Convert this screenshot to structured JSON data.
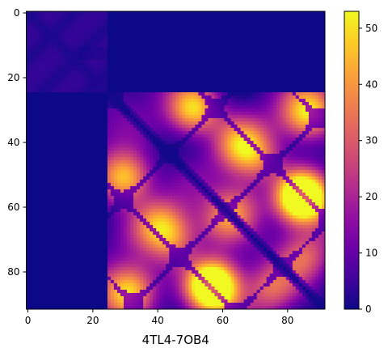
{
  "chart_data": {
    "type": "heatmap",
    "xlabel": "4TL4-7OB4",
    "grid_size": 92,
    "x_ticks": [
      0,
      20,
      40,
      60,
      80
    ],
    "y_ticks": [
      0,
      20,
      40,
      60,
      80
    ],
    "colorbar": {
      "min": 0,
      "max": 53,
      "ticks": [
        0,
        10,
        20,
        30,
        40,
        50
      ],
      "colormap": "plasma"
    },
    "blocks": [
      {
        "name": "block-1",
        "start": 0,
        "end": 25,
        "peak": 6
      },
      {
        "name": "block-2",
        "start": 25,
        "end": 92,
        "peak": 53
      }
    ],
    "off_diagonal_value": 0,
    "hotspots": [
      {
        "row": 85,
        "col": 57,
        "value": 50
      },
      {
        "row": 57,
        "col": 84,
        "value": 53
      },
      {
        "row": 40,
        "col": 65,
        "value": 35
      },
      {
        "row": 30,
        "col": 52,
        "value": 30
      },
      {
        "row": 50,
        "col": 30,
        "value": 30
      },
      {
        "row": 70,
        "col": 45,
        "value": 30
      },
      {
        "row": 75,
        "col": 85,
        "value": 28
      },
      {
        "row": 32,
        "col": 85,
        "value": 32
      },
      {
        "row": 65,
        "col": 60,
        "value": 28
      },
      {
        "row": 88,
        "col": 30,
        "value": 28
      }
    ]
  }
}
